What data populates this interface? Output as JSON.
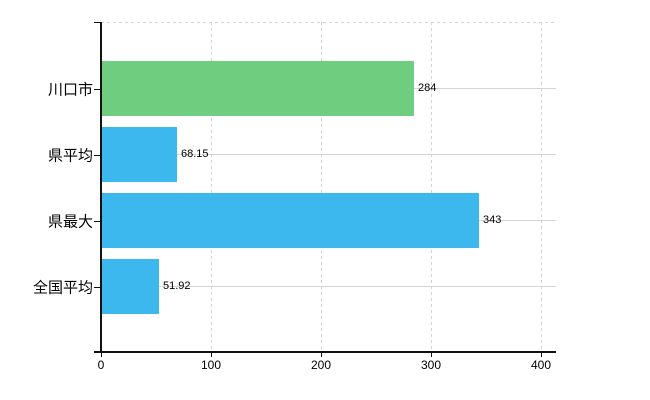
{
  "chart_data": {
    "type": "bar",
    "orientation": "horizontal",
    "categories": [
      "川口市",
      "県平均",
      "県最大",
      "全国平均"
    ],
    "values": [
      284,
      68.15,
      343,
      51.92
    ],
    "value_labels": [
      "284",
      "68.15",
      "343",
      "51.92"
    ],
    "series": [
      {
        "name": "",
        "values": [
          284,
          68.15,
          343,
          51.92
        ]
      }
    ],
    "bar_colors": [
      "#6fcd80",
      "#3cb8ee",
      "#3cb8ee",
      "#3cb8ee"
    ],
    "xlim": [
      0,
      400
    ],
    "x_ticks": [
      "0",
      "100",
      "200",
      "300",
      "400"
    ],
    "x_tick_values": [
      0,
      100,
      200,
      300,
      400
    ],
    "grid": true,
    "legend": "none"
  },
  "colors": {
    "bar_green": "#6fcd80",
    "bar_blue": "#3cb8ee",
    "gridline": "#d4d4d4",
    "axis": "#111111",
    "text": "#000000",
    "background": "#ffffff"
  }
}
